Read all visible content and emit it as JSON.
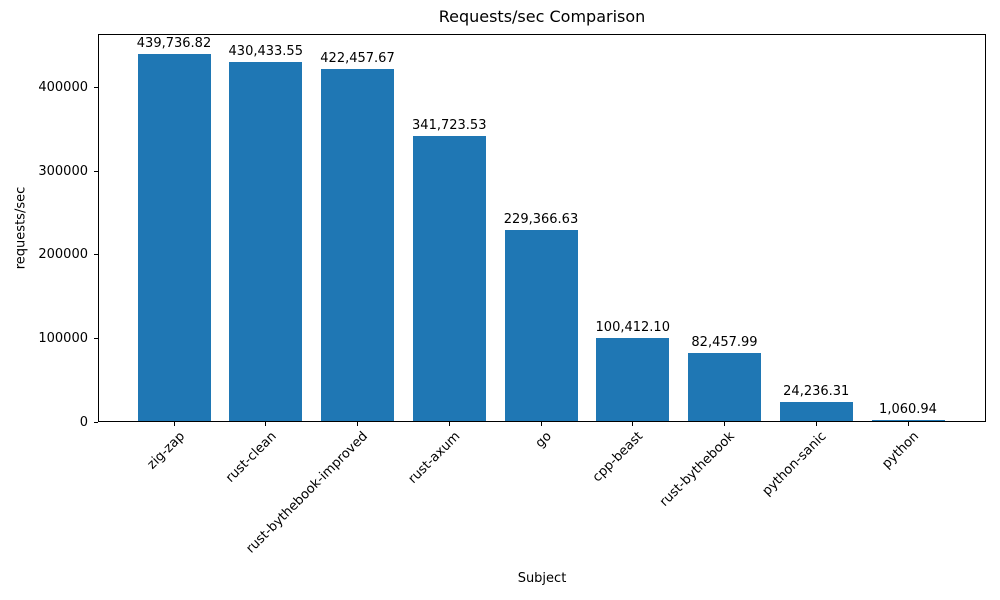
{
  "chart_data": {
    "type": "bar",
    "title": "Requests/sec Comparison",
    "xlabel": "Subject",
    "ylabel": "requests/sec",
    "categories": [
      "zig-zap",
      "rust-clean",
      "rust-bythebook-improved",
      "rust-axum",
      "go",
      "cpp-beast",
      "rust-bythebook",
      "python-sanic",
      "python"
    ],
    "values": [
      439736.82,
      430433.55,
      422457.67,
      341723.53,
      229366.63,
      100412.1,
      82457.99,
      24236.31,
      1060.94
    ],
    "value_labels": [
      "439,736.82",
      "430,433.55",
      "422,457.67",
      "341,723.53",
      "229,366.63",
      "100,412.10",
      "82,457.99",
      "24,236.31",
      "1,060.94"
    ],
    "yticks": [
      0,
      100000,
      200000,
      300000,
      400000
    ],
    "ytick_labels": [
      "0",
      "100000",
      "200000",
      "300000",
      "400000"
    ],
    "ylim": [
      0,
      464000
    ],
    "bar_color": "#1f77b4",
    "grid": false,
    "legend": "none",
    "x_tick_rotation_deg": 45
  }
}
